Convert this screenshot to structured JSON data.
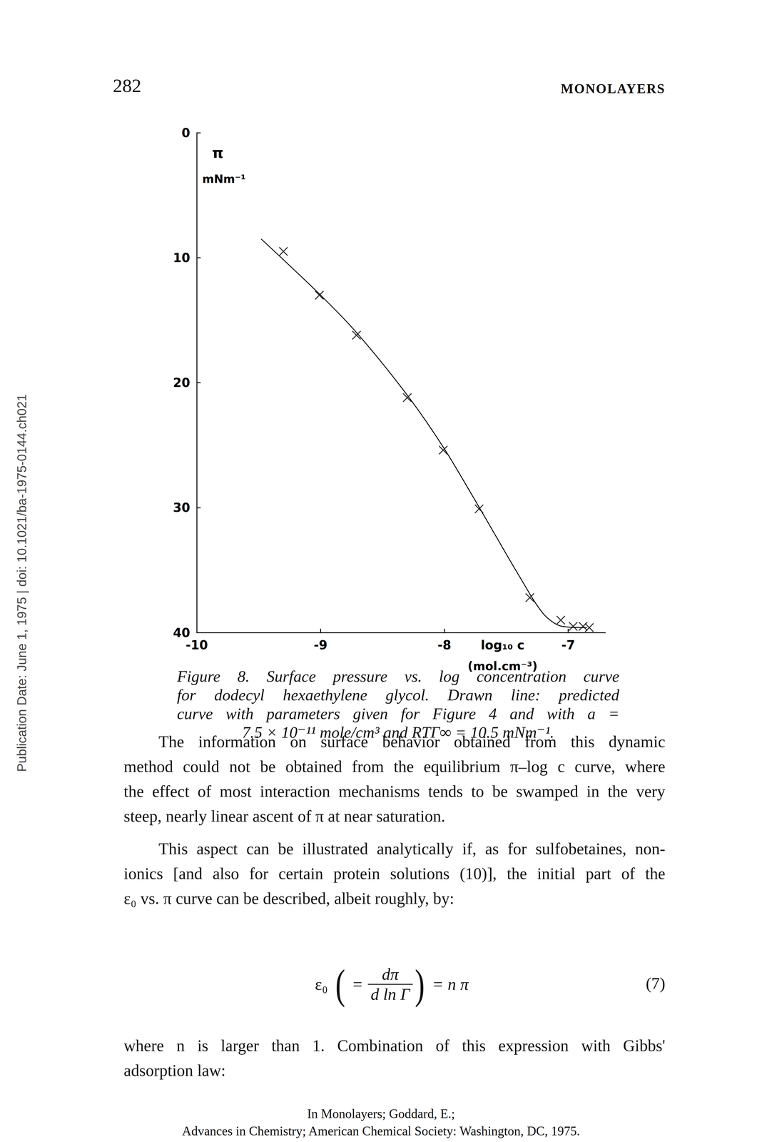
{
  "header": {
    "page": "282",
    "running_head": "MONOLAYERS"
  },
  "sidebar": "Publication Date: June 1, 1975 | doi: 10.1021/ba-1975-0144.ch021",
  "chart_data": {
    "type": "line",
    "ylabel": "π",
    "ylabel_unit": "mNm⁻¹",
    "xlabel": "log₁₀ c",
    "xlabel_unit": "(mol.cm⁻³)",
    "xlim": [
      -10,
      -6.7
    ],
    "xticks": [
      -10,
      -9,
      -8,
      -7
    ],
    "ylim": [
      0,
      40
    ],
    "yticks": [
      0,
      10,
      20,
      30,
      40
    ],
    "grid": false,
    "series": [
      {
        "type": "scatter",
        "marker": "x",
        "color": "#000000",
        "x": [
          -9.3,
          -9.01,
          -8.71,
          -8.3,
          -8.01,
          -7.72,
          -7.31,
          -7.06,
          -6.96,
          -6.88,
          -6.83
        ],
        "values": [
          9.5,
          13.0,
          16.2,
          21.2,
          25.4,
          30.1,
          37.2,
          39.0,
          39.5,
          39.5,
          39.6
        ]
      },
      {
        "type": "line",
        "line_style": "solid",
        "color": "#000000",
        "x": [
          -9.48,
          -9.0,
          -8.7,
          -8.3,
          -8.0,
          -7.7,
          -7.4,
          -7.2,
          -7.05,
          -6.85
        ],
        "values": [
          8.5,
          13.0,
          16.1,
          21.0,
          25.3,
          30.3,
          35.4,
          38.5,
          39.5,
          39.6
        ]
      }
    ]
  },
  "caption": [
    "Figure 8.  Surface pressure vs. log concentration curve",
    "for dodecyl hexaethylene glycol. Drawn line: predicted",
    "curve with parameters given for Figure 4 and with a =",
    "7.5 × 10⁻¹¹ mole/cm³ and RTΓ∞ = 10.5 mNm⁻¹."
  ],
  "paragraphs": [
    [
      "The information on surface behavior obtained from this dynamic",
      "method could not be obtained from the equilibrium π–log c curve, where",
      "the effect of most interaction mechanisms tends to be swamped in the very",
      "steep, nearly linear ascent of π at near saturation."
    ],
    [
      "This aspect can be illustrated analytically if, as for sulfobetaines, non-",
      "ionics [and also for certain protein solutions (10)], the initial part of the",
      "ε₀ vs. π curve can be described, albeit roughly, by:"
    ],
    [
      "where n is larger than 1. Combination of this expression with Gibbs'",
      "adsorption law:"
    ]
  ],
  "equation": {
    "lhs": "ε₀",
    "open": "(",
    "eq": "=",
    "numerator": "dπ",
    "denominator": "d ln Γ",
    "close": ")",
    "rhs": "= n π",
    "number": "(7)"
  },
  "footer": [
    "In Monolayers; Goddard, E.;",
    "Advances in Chemistry; American Chemical Society: Washington, DC, 1975."
  ]
}
